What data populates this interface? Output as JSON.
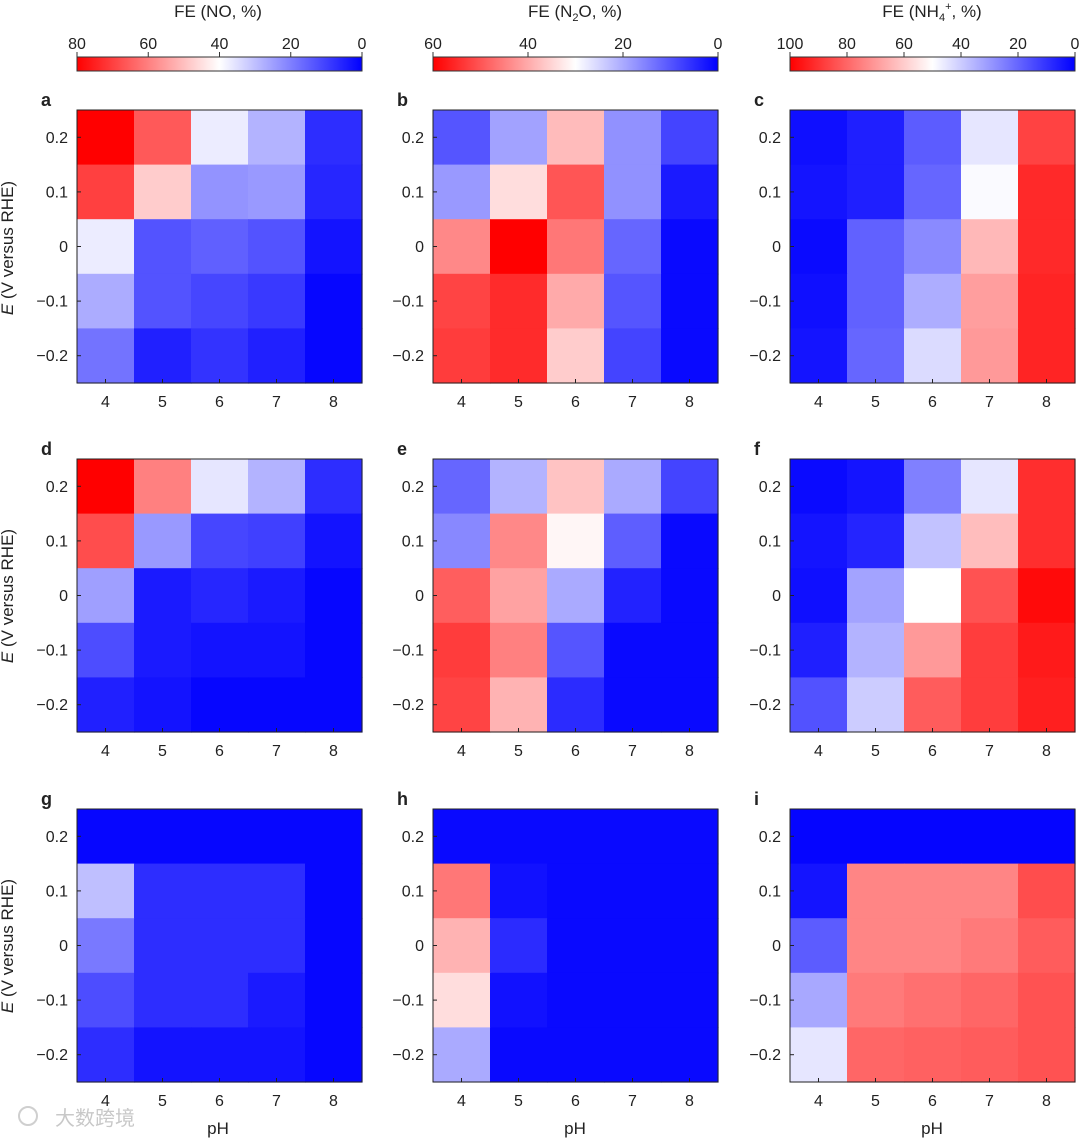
{
  "figure": {
    "watermark": "大数跨境",
    "colorbar_colors": {
      "high": "#ff0000",
      "mid": "#ffffff",
      "low": "#0000ff"
    }
  },
  "colorbars": [
    {
      "title": "FE (NO, %)",
      "ticks": [
        "80",
        "60",
        "40",
        "20",
        "0"
      ],
      "max": 80
    },
    {
      "title_main": "FE (N",
      "title_sub": "2",
      "title_tail": "O, %)",
      "ticks": [
        "60",
        "40",
        "20",
        "0"
      ],
      "max": 60
    },
    {
      "title_main": "FE (NH",
      "title_sub": "4",
      "title_sup": "+",
      "title_tail": ", %)",
      "ticks": [
        "100",
        "80",
        "60",
        "40",
        "20",
        "0"
      ],
      "max": 100
    }
  ],
  "axes": {
    "ylabel_italic": "E",
    "ylabel_rest": " (V versus RHE)",
    "xlabel": "pH",
    "xticks": [
      "4",
      "5",
      "6",
      "7",
      "8"
    ],
    "yticks": [
      "0.2",
      "0.1",
      "0",
      "−0.1",
      "−0.2"
    ]
  },
  "chart_data": [
    {
      "panel": "a",
      "type": "heatmap",
      "metric": "FE NO",
      "x": [
        4,
        5,
        6,
        7,
        8
      ],
      "y": [
        0.2,
        0.1,
        0,
        -0.1,
        -0.2
      ],
      "zlim": [
        0,
        80
      ],
      "z": [
        [
          80,
          66,
          37,
          28,
          7
        ],
        [
          70,
          48,
          23,
          24,
          6
        ],
        [
          37,
          13,
          15,
          13,
          3
        ],
        [
          27,
          13,
          11,
          9,
          1
        ],
        [
          18,
          5,
          8,
          5,
          1
        ]
      ]
    },
    {
      "panel": "b",
      "type": "heatmap",
      "metric": "FE N2O",
      "x": [
        4,
        5,
        6,
        7,
        8
      ],
      "y": [
        0.2,
        0.1,
        0,
        -0.1,
        -0.2
      ],
      "zlim": [
        0,
        60
      ],
      "z": [
        [
          10,
          19,
          38,
          17,
          8
        ],
        [
          18,
          34,
          50,
          17,
          3
        ],
        [
          44,
          60,
          46,
          12,
          1
        ],
        [
          52,
          55,
          40,
          10,
          1
        ],
        [
          53,
          55,
          36,
          8,
          1
        ]
      ]
    },
    {
      "panel": "c",
      "type": "heatmap",
      "metric": "FE NH4+",
      "x": [
        4,
        5,
        6,
        7,
        8
      ],
      "y": [
        0.2,
        0.1,
        0,
        -0.1,
        -0.2
      ],
      "zlim": [
        0,
        100
      ],
      "z": [
        [
          3,
          6,
          18,
          45,
          87
        ],
        [
          4,
          6,
          20,
          49,
          92
        ],
        [
          2,
          19,
          27,
          64,
          92
        ],
        [
          3,
          19,
          34,
          69,
          93
        ],
        [
          4,
          20,
          43,
          70,
          93
        ]
      ]
    },
    {
      "panel": "d",
      "type": "heatmap",
      "metric": "FE NO",
      "x": [
        4,
        5,
        6,
        7,
        8
      ],
      "y": [
        0.2,
        0.1,
        0,
        -0.1,
        -0.2
      ],
      "zlim": [
        0,
        80
      ],
      "z": [
        [
          80,
          60,
          36,
          28,
          7
        ],
        [
          68,
          24,
          11,
          10,
          3
        ],
        [
          25,
          4,
          6,
          4,
          1
        ],
        [
          12,
          4,
          3,
          3,
          1
        ],
        [
          5,
          3,
          1,
          1,
          1
        ]
      ]
    },
    {
      "panel": "e",
      "type": "heatmap",
      "metric": "FE N2O",
      "x": [
        4,
        5,
        6,
        7,
        8
      ],
      "y": [
        0.2,
        0.1,
        0,
        -0.1,
        -0.2
      ],
      "zlim": [
        0,
        60
      ],
      "z": [
        [
          12,
          21,
          37,
          20,
          8
        ],
        [
          16,
          44,
          31,
          11,
          1
        ],
        [
          49,
          41,
          20,
          4,
          1
        ],
        [
          53,
          45,
          10,
          1,
          1
        ],
        [
          52,
          39,
          5,
          1,
          1
        ]
      ]
    },
    {
      "panel": "f",
      "type": "heatmap",
      "metric": "FE NH4+",
      "x": [
        4,
        5,
        6,
        7,
        8
      ],
      "y": [
        0.2,
        0.1,
        0,
        -0.1,
        -0.2
      ],
      "zlim": [
        0,
        100
      ],
      "z": [
        [
          2,
          4,
          25,
          45,
          91
        ],
        [
          4,
          7,
          38,
          63,
          91
        ],
        [
          3,
          32,
          50,
          84,
          98
        ],
        [
          6,
          35,
          70,
          88,
          95
        ],
        [
          16,
          40,
          82,
          88,
          94
        ]
      ]
    },
    {
      "panel": "g",
      "type": "heatmap",
      "metric": "FE NO",
      "x": [
        4,
        5,
        6,
        7,
        8
      ],
      "y": [
        0.2,
        0.1,
        0,
        -0.1,
        -0.2
      ],
      "zlim": [
        0,
        80
      ],
      "z": [
        [
          1,
          1,
          1,
          1,
          1
        ],
        [
          30,
          7,
          7,
          7,
          1
        ],
        [
          19,
          7,
          7,
          7,
          1
        ],
        [
          12,
          7,
          7,
          4,
          1
        ],
        [
          7,
          3,
          3,
          3,
          1
        ]
      ]
    },
    {
      "panel": "h",
      "type": "heatmap",
      "metric": "FE N2O",
      "x": [
        4,
        5,
        6,
        7,
        8
      ],
      "y": [
        0.2,
        0.1,
        0,
        -0.1,
        -0.2
      ],
      "zlim": [
        0,
        60
      ],
      "z": [
        [
          1,
          1,
          1,
          1,
          1
        ],
        [
          46,
          2,
          1,
          1,
          1
        ],
        [
          39,
          5,
          1,
          1,
          1
        ],
        [
          34,
          2,
          1,
          1,
          1
        ],
        [
          20,
          1,
          1,
          1,
          1
        ]
      ]
    },
    {
      "panel": "i",
      "type": "heatmap",
      "metric": "FE NH4+",
      "x": [
        4,
        5,
        6,
        7,
        8
      ],
      "y": [
        0.2,
        0.1,
        0,
        -0.1,
        -0.2
      ],
      "zlim": [
        0,
        100
      ],
      "z": [
        [
          1,
          1,
          1,
          1,
          1
        ],
        [
          4,
          74,
          74,
          74,
          85
        ],
        [
          18,
          74,
          74,
          76,
          82
        ],
        [
          33,
          76,
          78,
          80,
          84
        ],
        [
          45,
          80,
          81,
          82,
          84
        ]
      ]
    }
  ]
}
